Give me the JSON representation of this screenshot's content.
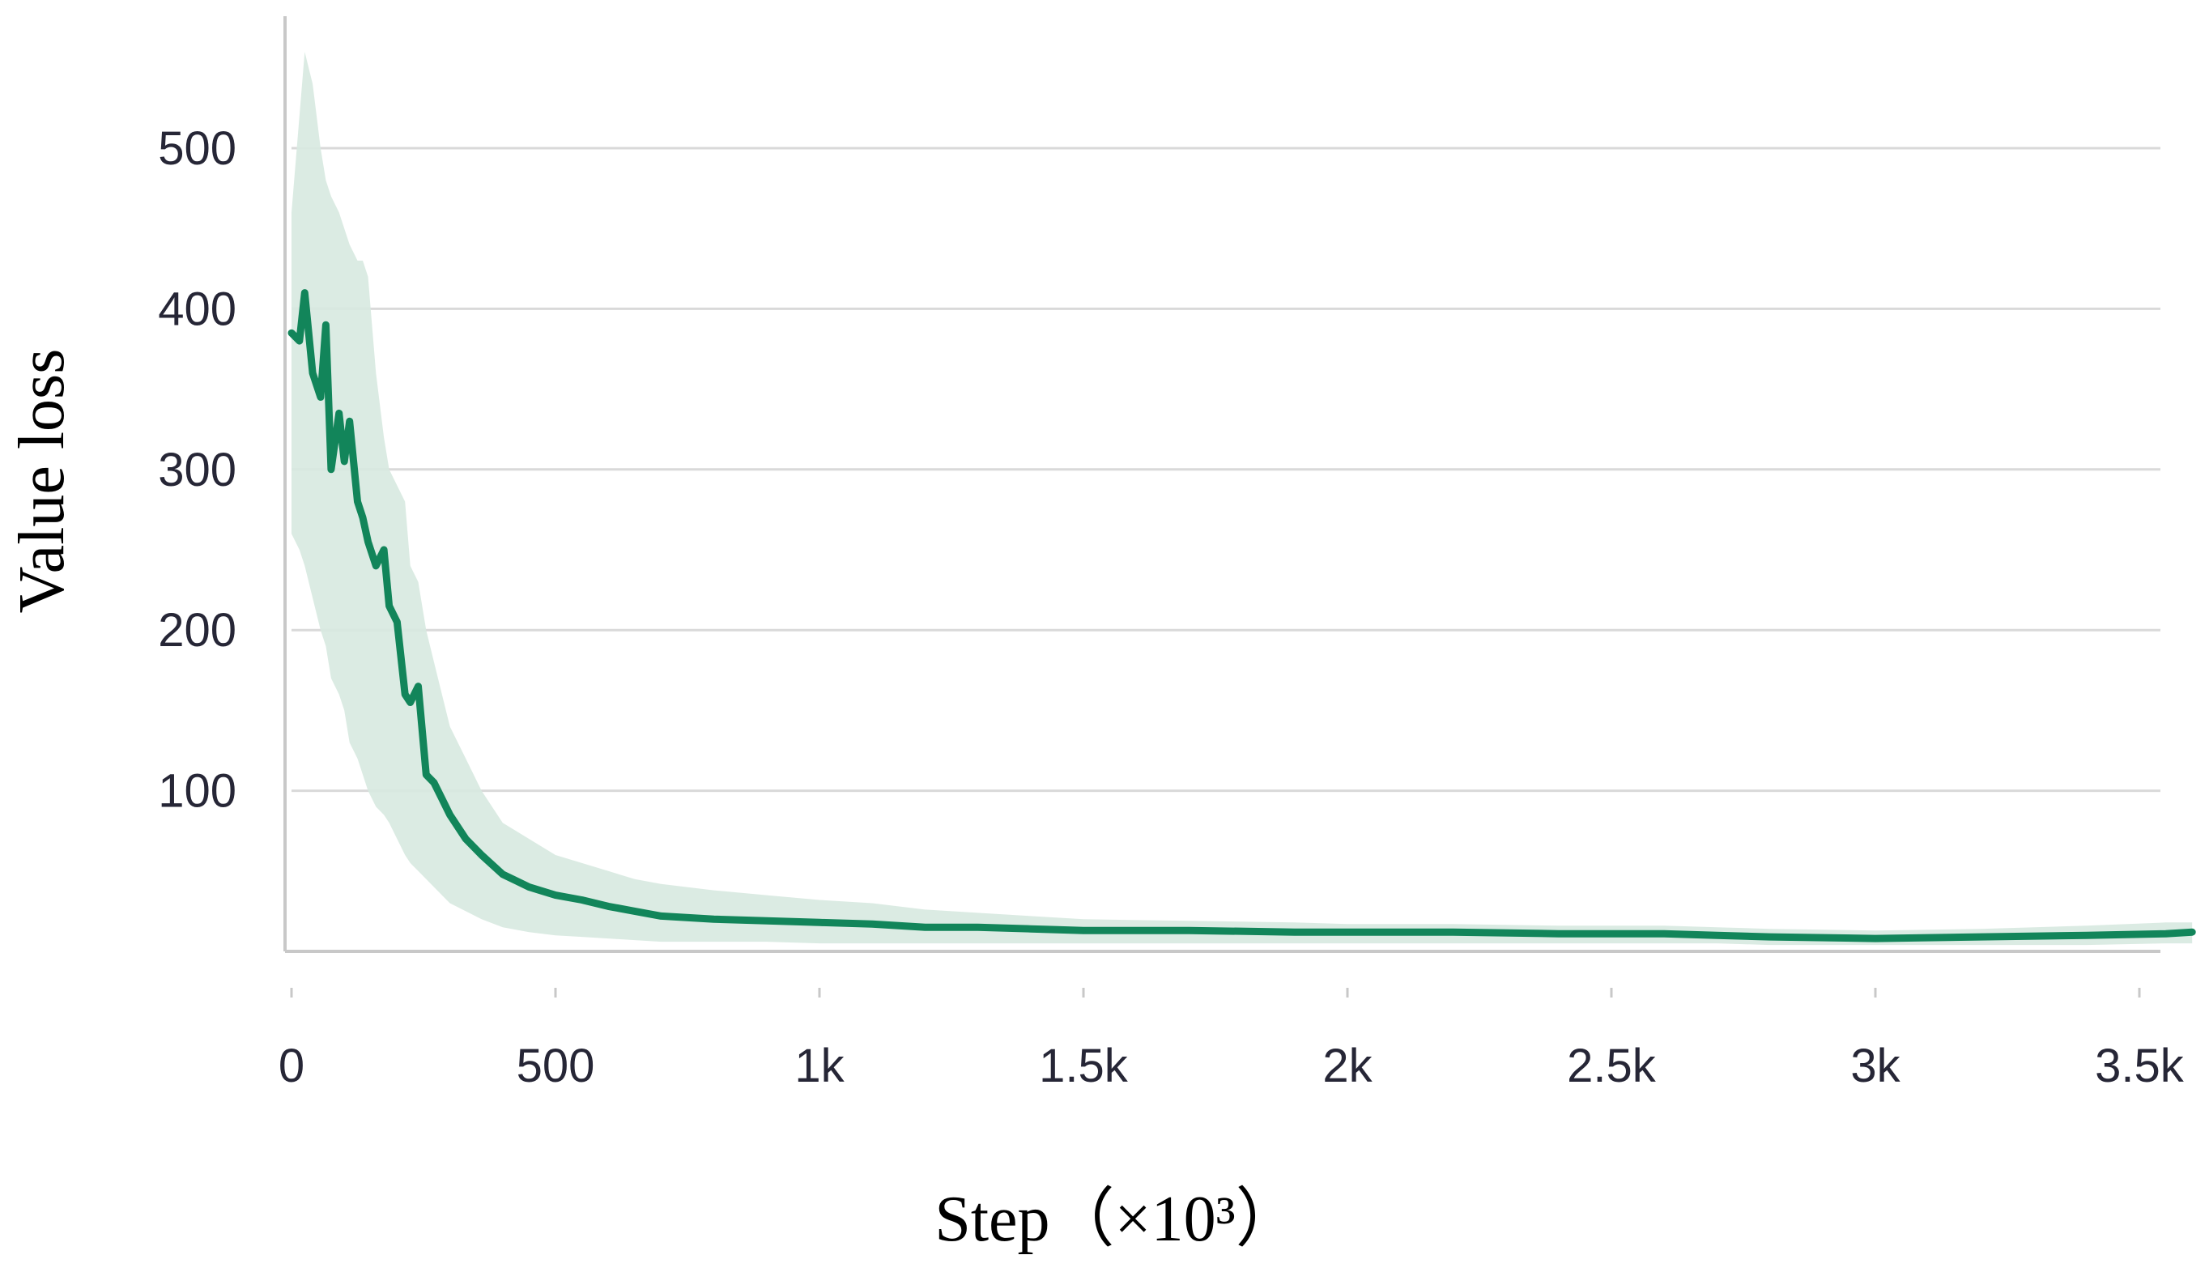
{
  "chart_data": {
    "type": "line",
    "title": "",
    "xlabel": "Step（×10³）",
    "ylabel": "Value loss",
    "xlim": [
      0,
      3600
    ],
    "ylim": [
      0,
      580
    ],
    "grid": "horizontal",
    "x_ticks": [
      {
        "value": 0,
        "label": "0"
      },
      {
        "value": 500,
        "label": "500"
      },
      {
        "value": 1000,
        "label": "1k"
      },
      {
        "value": 1500,
        "label": "1.5k"
      },
      {
        "value": 2000,
        "label": "2k"
      },
      {
        "value": 2500,
        "label": "2.5k"
      },
      {
        "value": 3000,
        "label": "3k"
      },
      {
        "value": 3500,
        "label": "3.5k"
      }
    ],
    "y_ticks": [
      {
        "value": 100,
        "label": "100"
      },
      {
        "value": 200,
        "label": "200"
      },
      {
        "value": 300,
        "label": "300"
      },
      {
        "value": 400,
        "label": "400"
      },
      {
        "value": 500,
        "label": "500"
      }
    ],
    "colors": {
      "line": "#12855a",
      "band": "#d7e9e0",
      "grid": "#d9d9d9",
      "axis": "#c8c8c8"
    },
    "series": [
      {
        "x": [
          0,
          15,
          25,
          40,
          55,
          65,
          75,
          90,
          100,
          110,
          125,
          135,
          145,
          160,
          175,
          185,
          200,
          215,
          225,
          240,
          255,
          270,
          285,
          300,
          330,
          360,
          400,
          450,
          500,
          550,
          600,
          650,
          700,
          800,
          900,
          1000,
          1100,
          1200,
          1300,
          1400,
          1500,
          1700,
          1900,
          2000,
          2200,
          2400,
          2600,
          2700,
          2800,
          3000,
          3200,
          3400,
          3550,
          3600
        ],
        "y": [
          385,
          380,
          410,
          360,
          345,
          390,
          300,
          335,
          305,
          330,
          280,
          270,
          255,
          240,
          250,
          215,
          205,
          160,
          155,
          165,
          110,
          105,
          95,
          85,
          70,
          60,
          48,
          40,
          35,
          32,
          28,
          25,
          22,
          20,
          19,
          18,
          17,
          15,
          15,
          14,
          13,
          13,
          12,
          12,
          12,
          11,
          11,
          10,
          9,
          8,
          9,
          10,
          11,
          12
        ],
        "upper": [
          460,
          520,
          560,
          540,
          500,
          480,
          470,
          460,
          450,
          440,
          430,
          430,
          420,
          360,
          320,
          300,
          290,
          280,
          240,
          230,
          200,
          180,
          160,
          140,
          120,
          100,
          80,
          70,
          60,
          55,
          50,
          45,
          42,
          38,
          35,
          32,
          30,
          26,
          24,
          22,
          20,
          19,
          18,
          17,
          17,
          16,
          16,
          15,
          14,
          13,
          14,
          16,
          18,
          18
        ],
        "lower": [
          260,
          250,
          240,
          220,
          200,
          190,
          170,
          160,
          150,
          130,
          120,
          110,
          100,
          90,
          85,
          80,
          70,
          60,
          55,
          50,
          45,
          40,
          35,
          30,
          25,
          20,
          15,
          12,
          10,
          9,
          8,
          7,
          6,
          6,
          6,
          5,
          5,
          5,
          5,
          5,
          5,
          5,
          5,
          5,
          5,
          5,
          5,
          5,
          4,
          4,
          4,
          4,
          5,
          5
        ]
      }
    ]
  }
}
